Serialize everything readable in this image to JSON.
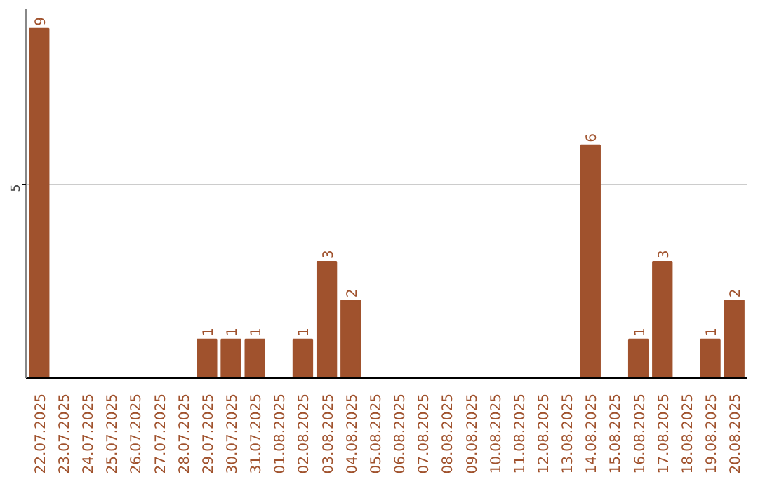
{
  "chart_data": {
    "type": "bar",
    "categories": [
      "22.07.2025",
      "23.07.2025",
      "24.07.2025",
      "25.07.2025",
      "26.07.2025",
      "27.07.2025",
      "28.07.2025",
      "29.07.2025",
      "30.07.2025",
      "31.07.2025",
      "01.08.2025",
      "02.08.2025",
      "03.08.2025",
      "04.08.2025",
      "05.08.2025",
      "06.08.2025",
      "07.08.2025",
      "08.08.2025",
      "09.08.2025",
      "10.08.2025",
      "11.08.2025",
      "12.08.2025",
      "13.08.2025",
      "14.08.2025",
      "15.08.2025",
      "16.08.2025",
      "17.08.2025",
      "18.08.2025",
      "19.08.2025",
      "20.08.2025"
    ],
    "values": [
      9,
      0,
      0,
      0,
      0,
      0,
      0,
      1,
      1,
      1,
      0,
      1,
      3,
      2,
      0,
      0,
      0,
      0,
      0,
      0,
      0,
      0,
      0,
      6,
      0,
      1,
      3,
      0,
      1,
      2
    ],
    "value_labels": [
      "9",
      null,
      null,
      null,
      null,
      null,
      null,
      "1",
      "1",
      "1",
      null,
      "1",
      "3",
      "2",
      null,
      null,
      null,
      null,
      null,
      null,
      null,
      null,
      null,
      "6",
      null,
      "1",
      "3",
      null,
      "1",
      "2"
    ],
    "color": "#a0522d",
    "ylim": [
      0,
      9.5
    ],
    "yticks": [
      5
    ],
    "grid": "y"
  }
}
